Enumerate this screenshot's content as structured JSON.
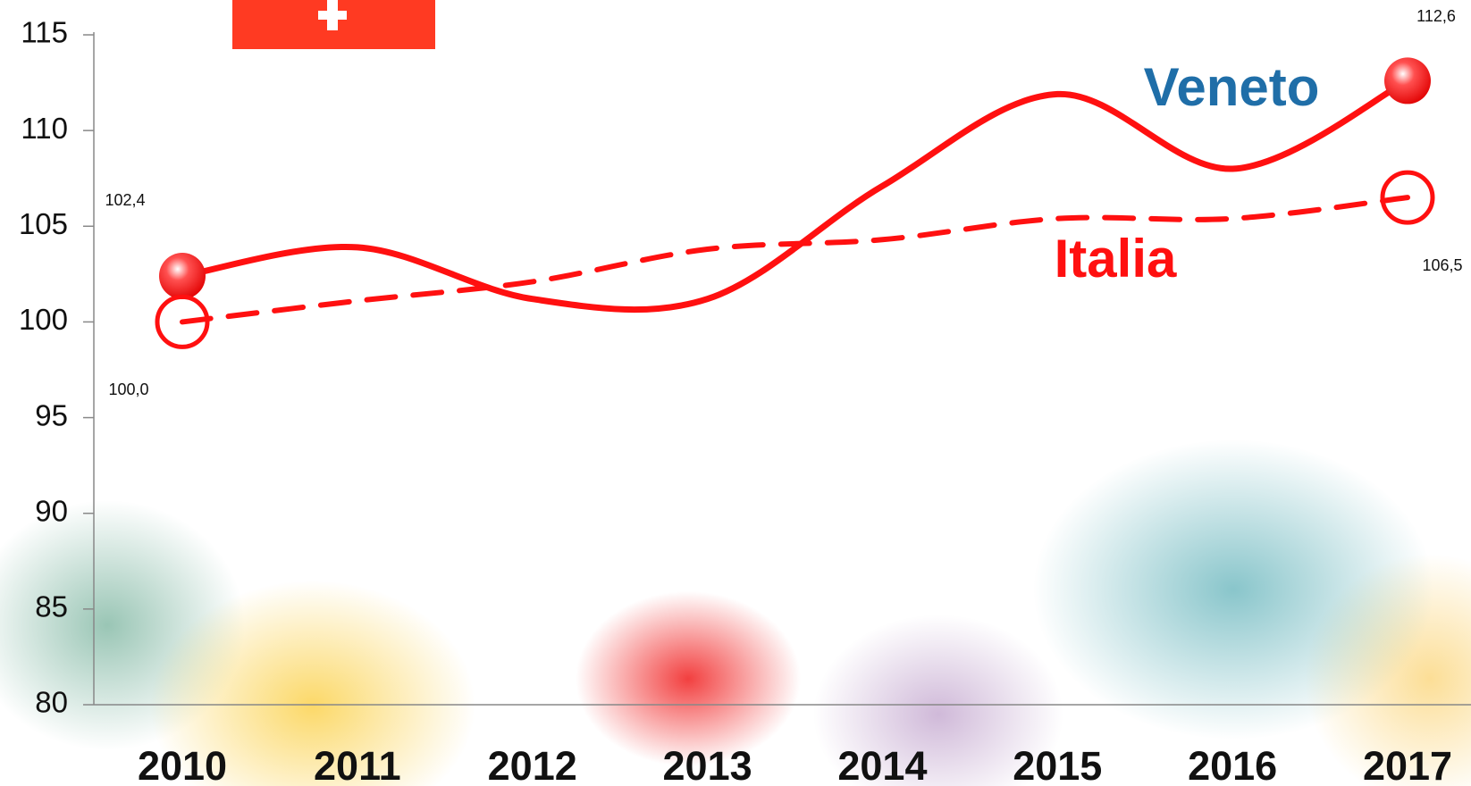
{
  "chart_data": {
    "type": "line",
    "categories": [
      "2010",
      "2011",
      "2012",
      "2013",
      "2014",
      "2015",
      "2016",
      "2017"
    ],
    "ylim": [
      80,
      115
    ],
    "yticks": [
      80,
      85,
      90,
      95,
      100,
      105,
      110,
      115
    ],
    "series": [
      {
        "name": "Veneto",
        "color": "#ff1010",
        "label_color": "#1f6ea8",
        "dashed": false,
        "marker": "filled",
        "values": [
          102.4,
          103.9,
          101.2,
          101.2,
          107.1,
          111.9,
          108.0,
          112.6
        ],
        "value_labels": [
          "102,4",
          null,
          null,
          null,
          null,
          null,
          null,
          "112,6"
        ]
      },
      {
        "name": "Italia",
        "color": "#ff1010",
        "label_color": "#ff1010",
        "dashed": true,
        "marker": "hollow",
        "values": [
          100.0,
          101.1,
          102.1,
          103.8,
          104.3,
          105.4,
          105.4,
          106.5
        ],
        "value_labels": [
          "100,0",
          null,
          null,
          null,
          null,
          null,
          null,
          "106,5"
        ]
      }
    ]
  }
}
